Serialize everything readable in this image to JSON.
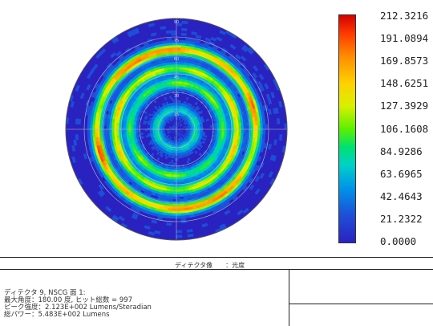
{
  "chart_data": {
    "type": "heatmap",
    "projection": "polar",
    "colorbar": {
      "ticks": [
        "212.3216",
        "191.0894",
        "169.8573",
        "148.6251",
        "127.3929",
        "106.1608",
        "84.9286",
        "63.6965",
        "42.4643",
        "21.2322",
        "0.0000"
      ],
      "min": 0.0,
      "max": 212.3216
    },
    "polar_angle_labels": [
      "90",
      "75",
      "60",
      "45",
      "30",
      "15"
    ],
    "rings": [
      {
        "radius_fraction": 0.18,
        "intensity": 70
      },
      {
        "radius_fraction": 0.42,
        "intensity": 100
      },
      {
        "radius_fraction": 0.55,
        "intensity": 140
      },
      {
        "radius_fraction": 0.72,
        "intensity": 160
      }
    ],
    "hotspots": [
      {
        "azimuth_deg": 200,
        "radius_fraction": 0.72,
        "intensity": 212
      },
      {
        "azimuth_deg": 20,
        "radius_fraction": 0.72,
        "intensity": 200
      },
      {
        "azimuth_deg": 120,
        "radius_fraction": 0.7,
        "intensity": 190
      },
      {
        "azimuth_deg": 300,
        "radius_fraction": 0.72,
        "intensity": 180
      }
    ],
    "background_value": 21.0
  },
  "info": {
    "header": "ディテクタ像　　：光度",
    "line1": "ディテクタ 9, NSCG 面 1:",
    "line2": "最大角度：180.00 度, ヒット総数 = 997",
    "line3": "ピーク強度：2.123E+002 Lumens/Steradian",
    "line4": "総パワー：5.483E+002 Lumens"
  },
  "colors": {
    "background": "#ffffff",
    "low": "#2a22c0",
    "high": "#d40000"
  }
}
